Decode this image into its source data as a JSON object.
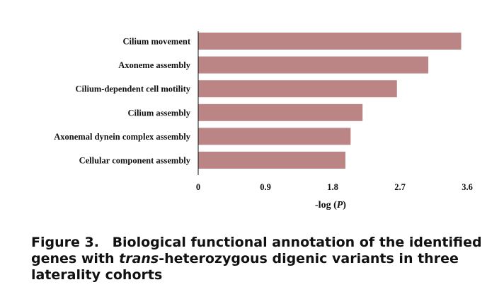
{
  "chart_data": {
    "type": "bar",
    "orientation": "horizontal",
    "categories": [
      "Cilium movement",
      "Axoneme assembly",
      "Cilium-dependent cell motility",
      "Cilium assembly",
      "Axonemal dynein complex assembly",
      "Cellular component assembly"
    ],
    "values": [
      3.52,
      3.08,
      2.66,
      2.2,
      2.04,
      1.97
    ],
    "xlabel": "-log (P)",
    "xticks": [
      "0",
      "0.9",
      "1.8",
      "2.7",
      "3.6"
    ],
    "xlim": [
      0,
      3.6
    ],
    "bar_color": "#bb8585",
    "grid": false
  },
  "caption": {
    "label": "Figure 3.",
    "text_before": "Biological functional annotation of the identified genes with ",
    "italic": "trans",
    "text_after": "-heterozygous digenic variants in three laterality cohorts"
  }
}
